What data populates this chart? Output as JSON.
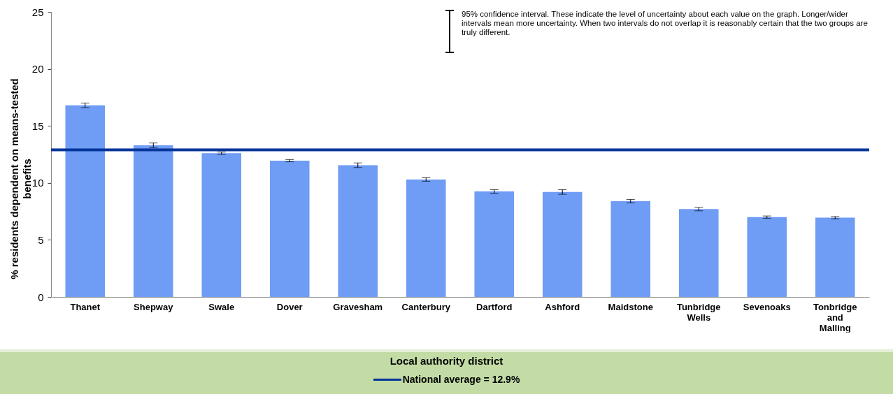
{
  "chart_data": {
    "type": "bar",
    "xlabel": "Local authority district",
    "ylabel": "% residents dependent on means-tested benefits",
    "categories": [
      "Thanet",
      "Shepway",
      "Swale",
      "Dover",
      "Gravesham",
      "Canterbury",
      "Dartford",
      "Ashford",
      "Maidstone",
      "Tunbridge Wells",
      "Sevenoaks",
      "Tonbridge and Malling"
    ],
    "values": [
      16.8,
      13.3,
      12.6,
      11.95,
      11.55,
      10.3,
      9.25,
      9.2,
      8.4,
      7.7,
      7.0,
      6.95
    ],
    "errors": [
      0.2,
      0.2,
      0.1,
      0.1,
      0.2,
      0.15,
      0.15,
      0.2,
      0.15,
      0.15,
      0.1,
      0.1
    ],
    "color": "#6f9cf5",
    "ylim": [
      0,
      25
    ],
    "yticks": [
      0,
      5,
      10,
      15,
      20,
      25
    ],
    "grid": false,
    "legend": "bottom",
    "ref_lines": [
      {
        "axis": "y",
        "value": 12.9,
        "label": "National average = 12.9%",
        "color": "#003399"
      }
    ],
    "annotations": [
      "95% confidence interval. These indicate the level of uncertainty about each value on the graph. Longer/wider intervals mean more uncertainty. When two intervals do not overlap it is reasonably certain that the two groups are truly different."
    ]
  }
}
